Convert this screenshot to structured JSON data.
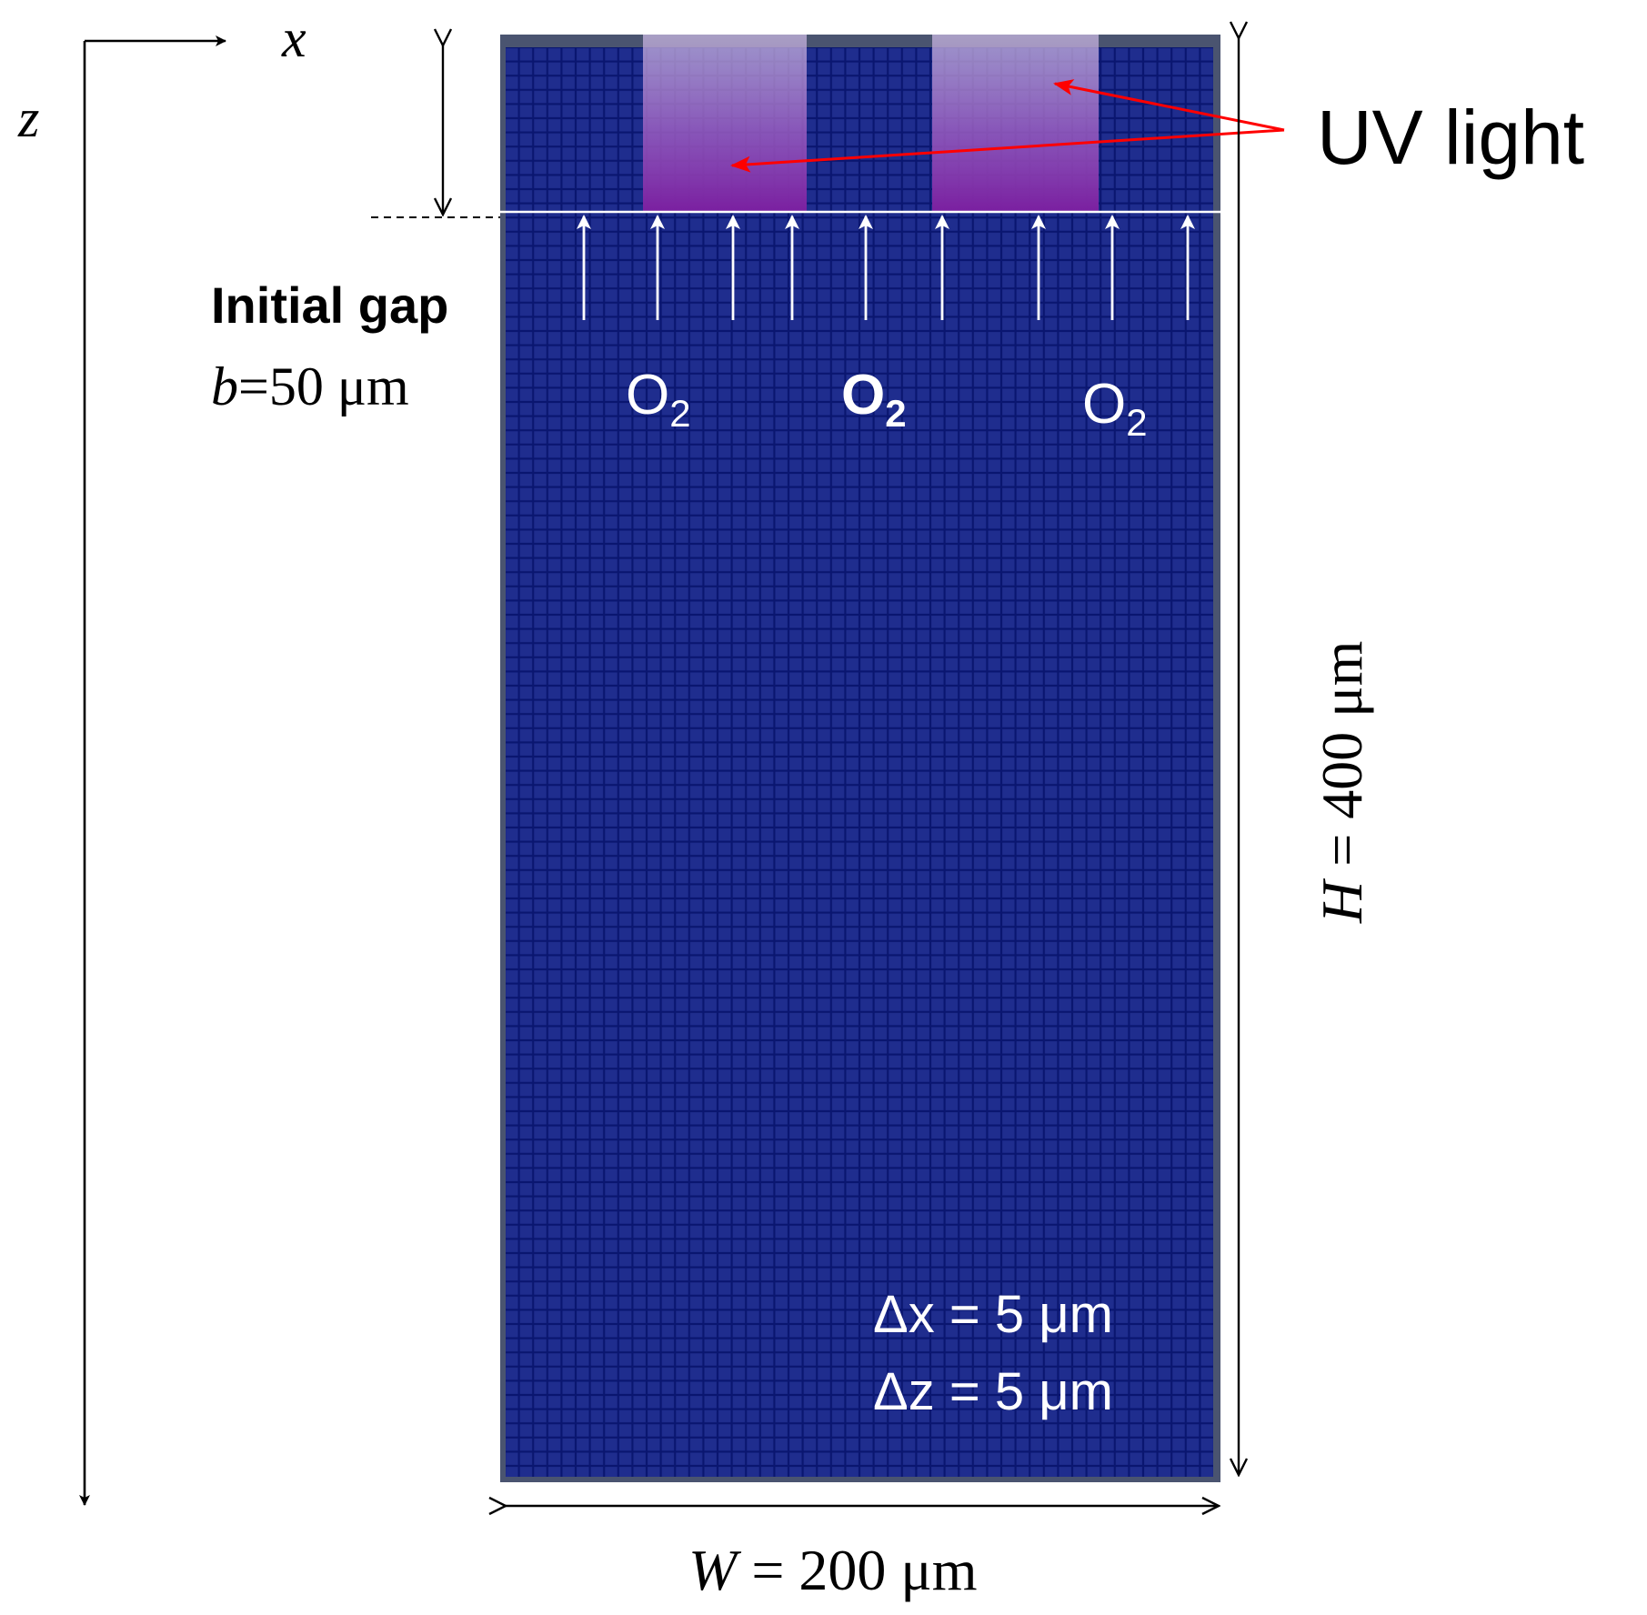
{
  "axes": {
    "x_label": "x",
    "z_label": "z"
  },
  "uv_light": {
    "label": "UV light",
    "color": "#ff0000"
  },
  "gap": {
    "title": "Initial gap",
    "var": "b",
    "value": "=50 μm"
  },
  "oxygen": {
    "labels": [
      {
        "base": "O",
        "sub": "2",
        "bold": false
      },
      {
        "base": "O",
        "sub": "2",
        "bold": true
      },
      {
        "base": "O",
        "sub": "2",
        "bold": false
      }
    ]
  },
  "mesh": {
    "dx_label": "Δx = 5 μm",
    "dz_label": "Δz = 5 μm",
    "fill_color": "#1f2d8e",
    "line_color": "#0a1670"
  },
  "dims": {
    "height_var": "H",
    "height_value": " = 400 μm",
    "width_var": "W",
    "width_value": " = 200 μm"
  }
}
